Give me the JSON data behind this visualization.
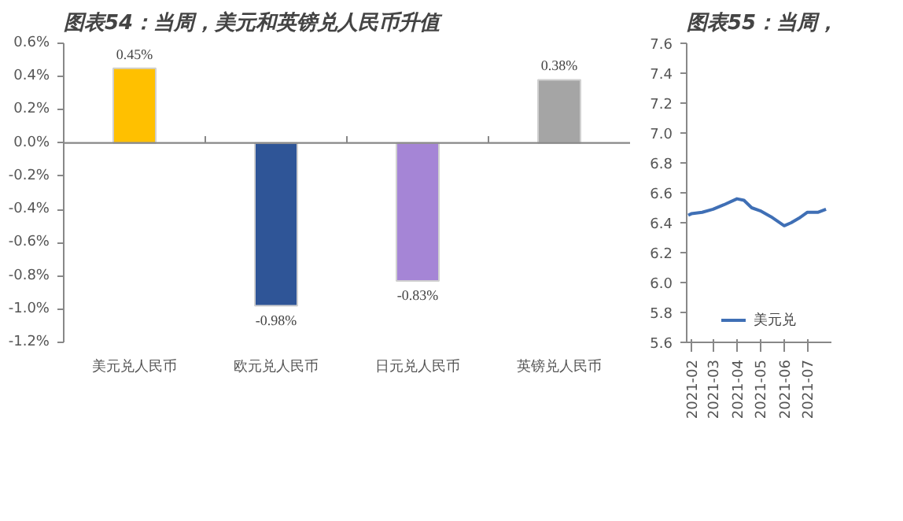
{
  "chart_data": [
    {
      "type": "bar",
      "title": "图表54：当周，美元和英镑兑人民币升值",
      "categories": [
        "美元兑人民币",
        "欧元兑人民币",
        "日元兑人民币",
        "英镑兑人民币"
      ],
      "values": [
        0.45,
        -0.98,
        -0.83,
        0.38
      ],
      "colors": [
        "#ffc000",
        "#2f5597",
        "#a585d6",
        "#a5a5a5"
      ],
      "value_labels": [
        "0.45%",
        "-0.98%",
        "-0.83%",
        "0.38%"
      ],
      "ylim": [
        -1.2,
        0.6
      ],
      "yticks": [
        {
          "value": -1.2,
          "label": "-1.2%"
        },
        {
          "value": -1.0,
          "label": "-1.0%"
        },
        {
          "value": -0.8,
          "label": "-0.8%"
        },
        {
          "value": -0.6,
          "label": "-0.6%"
        },
        {
          "value": -0.4,
          "label": "-0.4%"
        },
        {
          "value": -0.2,
          "label": "-0.2%"
        },
        {
          "value": 0.0,
          "label": "0.0%"
        },
        {
          "value": 0.2,
          "label": "0.2%"
        },
        {
          "value": 0.4,
          "label": "0.4%"
        },
        {
          "value": 0.6,
          "label": "0.6%"
        }
      ],
      "ref_lines": [
        {
          "axis": "y",
          "value": 0,
          "color": "#888888"
        }
      ],
      "grid": false
    },
    {
      "type": "line",
      "title": "图表55：当周，",
      "series": [
        {
          "name": "美元兑",
          "color": "#3f6fb5",
          "x": [
            "2021-01-28",
            "2021-02-01",
            "2021-02-15",
            "2021-03-01",
            "2021-03-15",
            "2021-04-01",
            "2021-04-10",
            "2021-04-20",
            "2021-05-01",
            "2021-05-15",
            "2021-06-01",
            "2021-06-10",
            "2021-06-20",
            "2021-07-01",
            "2021-07-15",
            "2021-07-25"
          ],
          "values": [
            6.45,
            6.46,
            6.47,
            6.49,
            6.52,
            6.56,
            6.55,
            6.5,
            6.48,
            6.44,
            6.38,
            6.4,
            6.43,
            6.47,
            6.47,
            6.49
          ]
        }
      ],
      "xlim": [
        "2021-01-26",
        "2021-08-01"
      ],
      "xticks": [
        "2021-02",
        "2021-03",
        "2021-04",
        "2021-05",
        "2021-06",
        "2021-07"
      ],
      "ylim": [
        5.6,
        7.6
      ],
      "yticks": [
        {
          "value": 5.6,
          "label": "5.6"
        },
        {
          "value": 5.8,
          "label": "5.8"
        },
        {
          "value": 6.0,
          "label": "6.0"
        },
        {
          "value": 6.2,
          "label": "6.2"
        },
        {
          "value": 6.4,
          "label": "6.4"
        },
        {
          "value": 6.6,
          "label": "6.6"
        },
        {
          "value": 6.8,
          "label": "6.8"
        },
        {
          "value": 7.0,
          "label": "7.0"
        },
        {
          "value": 7.2,
          "label": "7.2"
        },
        {
          "value": 7.4,
          "label": "7.4"
        },
        {
          "value": 7.6,
          "label": "7.6"
        }
      ],
      "grid": false,
      "legend": "bottom",
      "marker": "none",
      "line_style": "solid"
    }
  ]
}
